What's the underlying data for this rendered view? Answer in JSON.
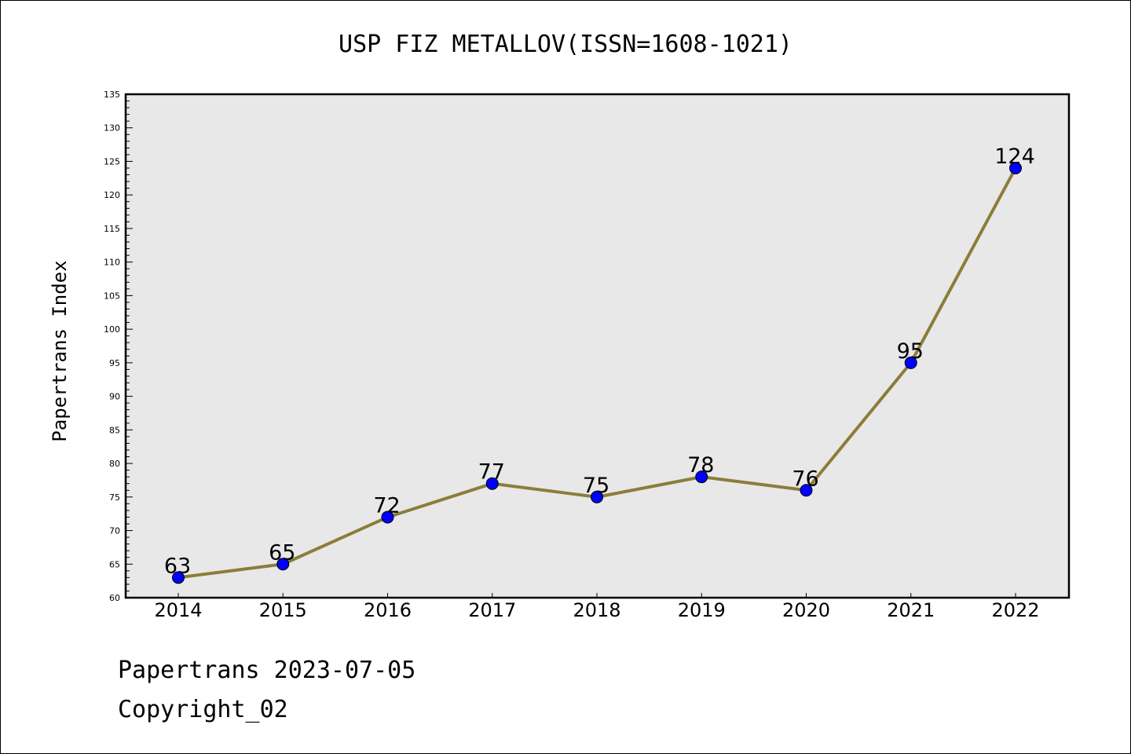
{
  "footer": {
    "line1": "Papertrans 2023-07-05",
    "line2": "Copyright_02"
  },
  "colors": {
    "line": "#8b7d3a",
    "marker": "#0000ff",
    "plot_bg": "#e8e8e8"
  },
  "chart_data": {
    "type": "line",
    "title": "USP FIZ METALLOV(ISSN=1608-1021)",
    "xlabel": "",
    "ylabel": "Papertrans Index",
    "categories": [
      "2014",
      "2015",
      "2016",
      "2017",
      "2018",
      "2019",
      "2020",
      "2021",
      "2022"
    ],
    "series": [
      {
        "values": [
          63,
          65,
          72,
          77,
          75,
          78,
          76,
          95,
          124
        ]
      }
    ],
    "data_labels": [
      "63",
      "65",
      "72",
      "77",
      "75",
      "78",
      "76",
      "95",
      "124"
    ],
    "ylim": [
      60,
      135
    ],
    "yticks": [
      60,
      65,
      70,
      75,
      80,
      85,
      90,
      95,
      100,
      105,
      110,
      115,
      120,
      125,
      130,
      135
    ],
    "grid": false,
    "legend": "none"
  }
}
